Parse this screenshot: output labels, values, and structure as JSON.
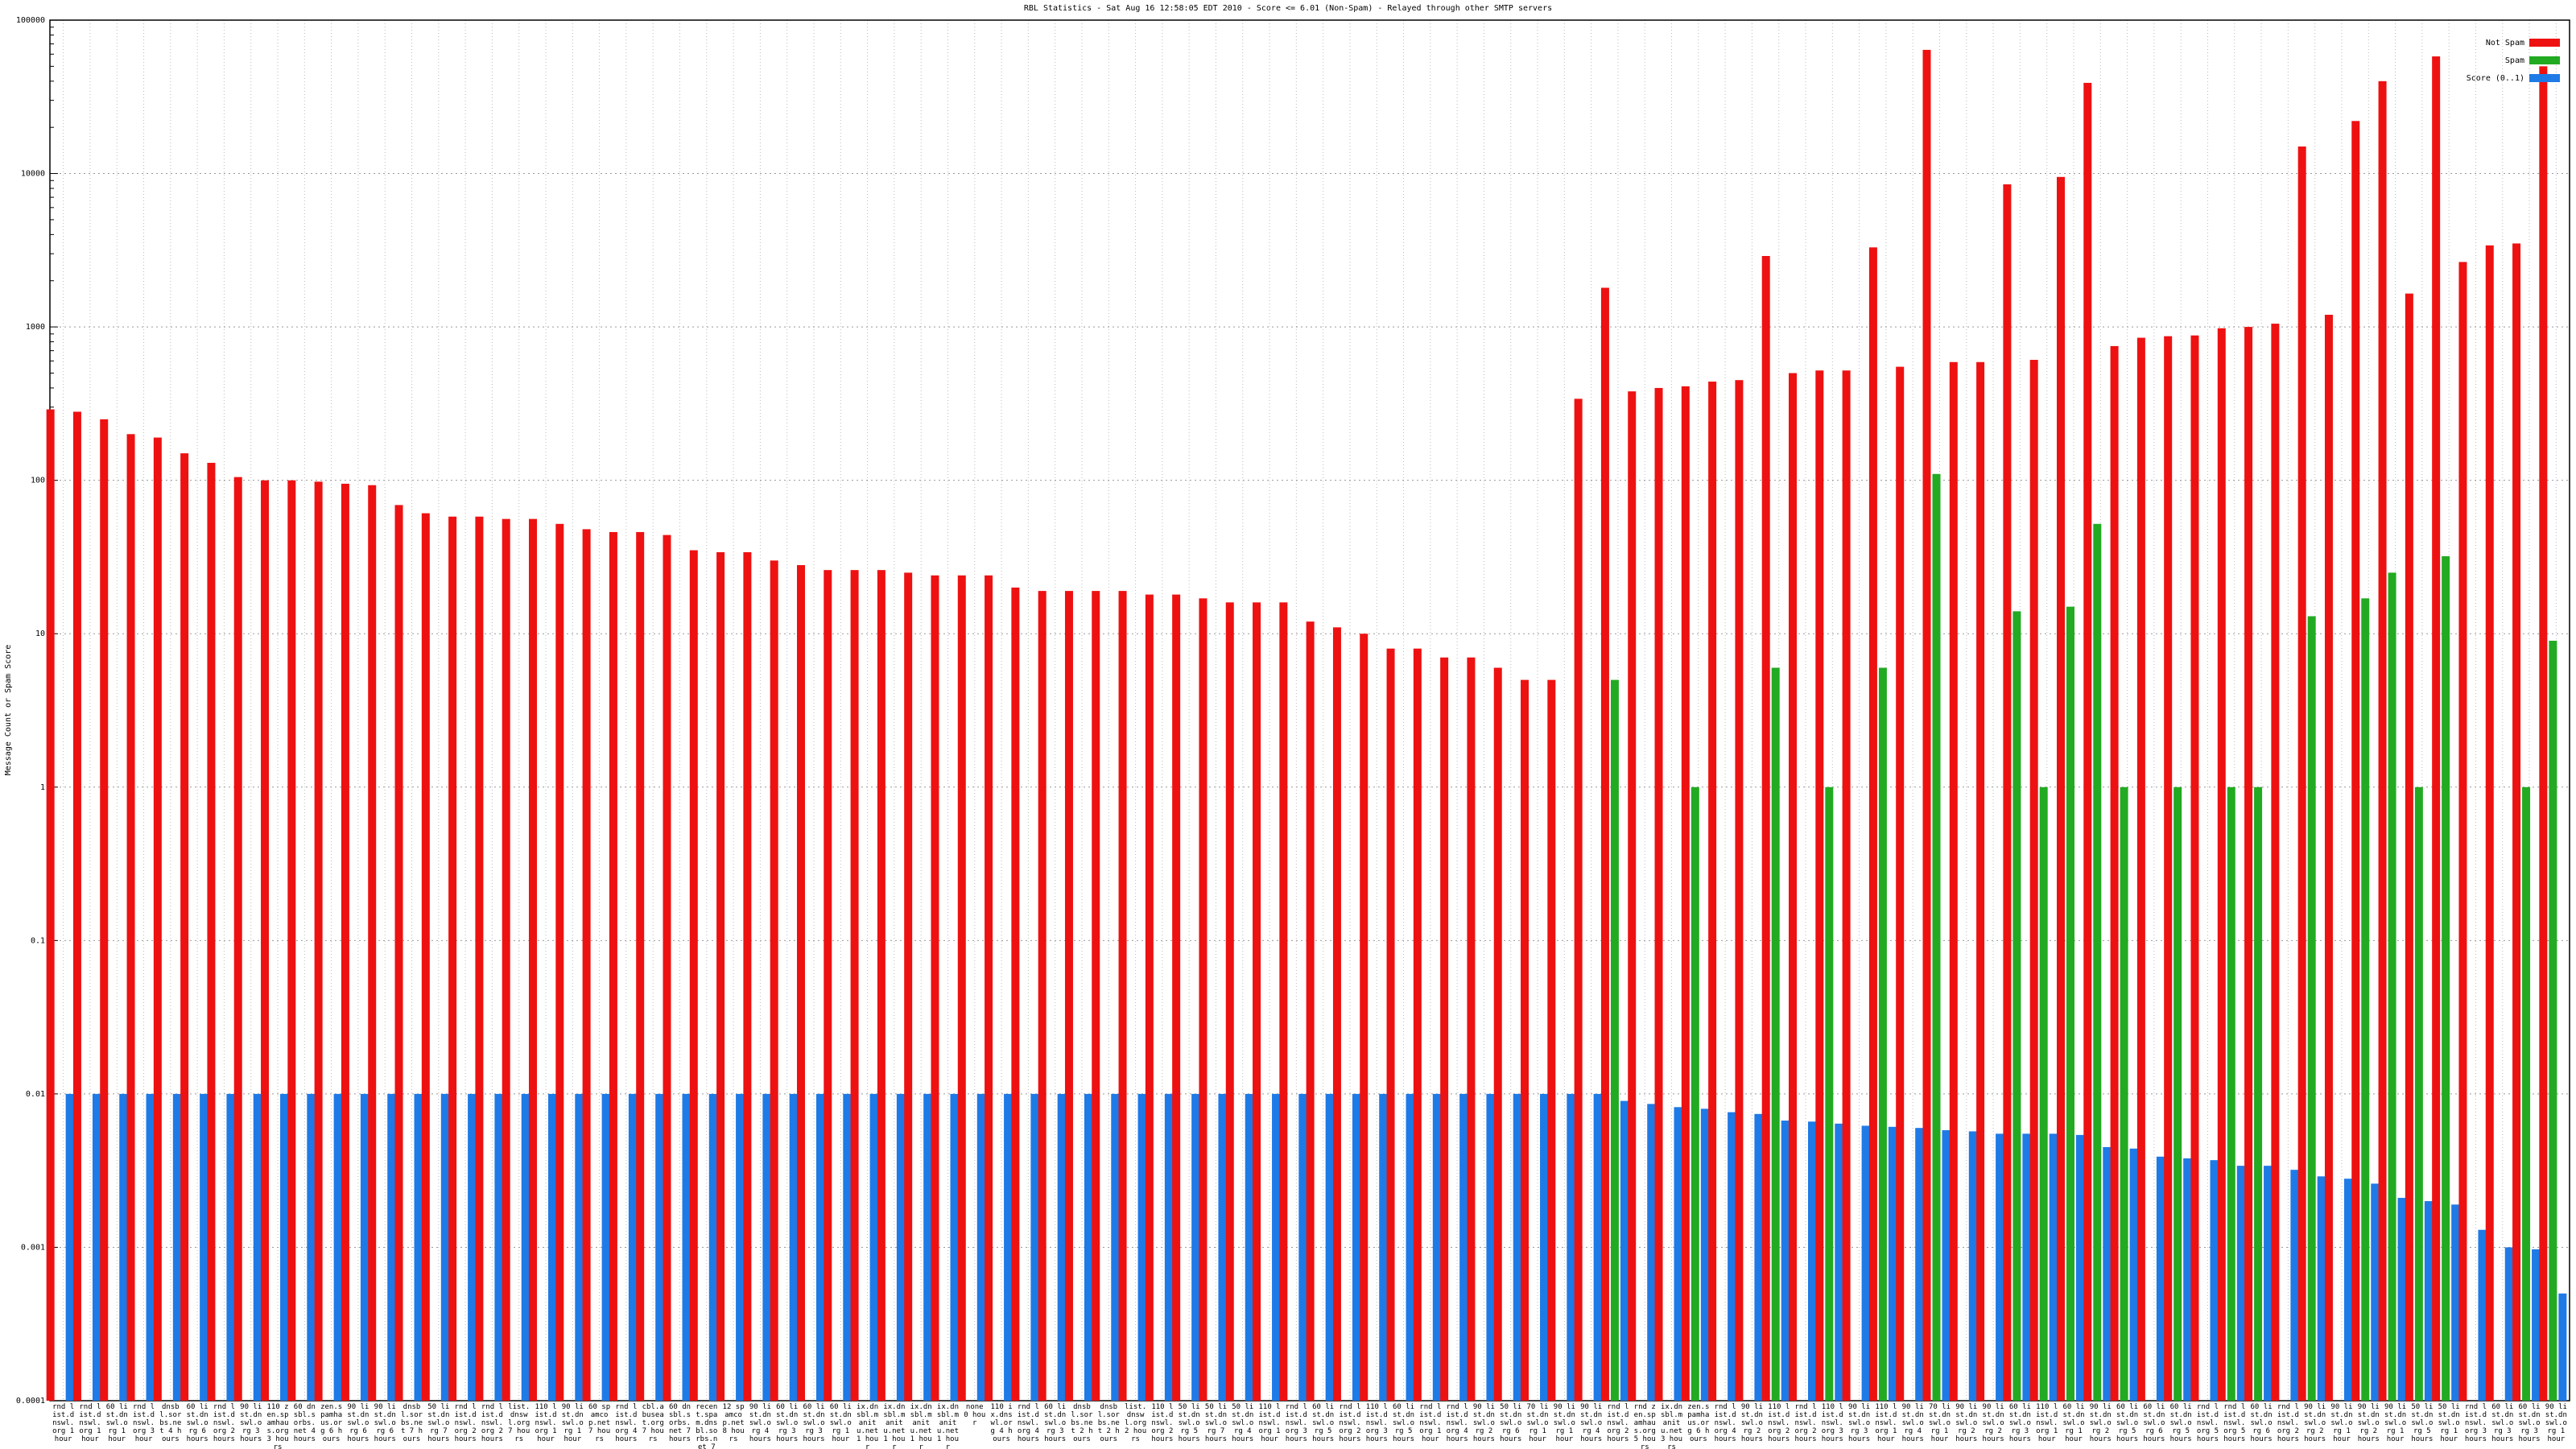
{
  "chart_data": {
    "type": "bar",
    "title": "RBL Statistics - Sat Aug 16 12:58:05 EDT 2010 - Score <= 6.01 (Non-Spam) - Relayed through other SMTP servers",
    "y_label": "Message Count or Spam Score",
    "log_scale": true,
    "grid": true,
    "legend": "top-right",
    "ylim": [
      0.0001,
      100000
    ],
    "yticks": [
      0.0001,
      0.001,
      0.01,
      0.1,
      1,
      10,
      100,
      1000,
      10000,
      100000
    ],
    "categories": [
      "rnd list.dnswl.org 1 hour",
      "rnd list.dnswl.org 1 hour",
      "60 list.dnswl.org 1 hour",
      "rnd list.dnswl.org 3 hour",
      "dnsbl.sorbs.net 4 hours",
      "60 list.dnswl.org 6 hours",
      "rnd list.dnswl.org 2 hours",
      "90 list.dnswl.org 3 hours",
      "110 zen.spamhaus.org 3 hours",
      "60 dnsbl.sorbs.net 4 hours",
      "zen.spamhaus.org 6 hours",
      "90 list.dnswl.org 6 hours",
      "90 list.dnswl.org 6 hours",
      "dnsbl.sorbs.net 7 hours",
      "50 list.dnswl.org 7 hours",
      "rnd list.dnswl.org 2 hours",
      "rnd list.dnswl.org 2 hours",
      "list.dnswl.org 7 hours",
      "110 list.dnswl.org 1 hour",
      "90 list.dnswl.org 1 hour",
      "60 spamcop.net 7 hours",
      "rnd list.dnswl.org 4 hours",
      "cbl.abuseat.org 7 hours",
      "60 dnsbl.sorbs.net 7 hours",
      "recent.spam.dnsbl.sorbs.net 7 hours",
      "12 spamcop.net 8 hours",
      "90 list.dnswl.org 4 hours",
      "60 list.dnswl.org 3 hours",
      "60 list.dnswl.org 3 hours",
      "60 list.dnswl.org 1 hour",
      "ix.dnsbl.manitu.net 1 hour",
      "ix.dnsbl.manitu.net 1 hour",
      "ix.dnsbl.manitu.net 1 hour",
      "ix.dnsbl.manitu.net 1 hour",
      "none 0 hour",
      "110 ix.dnswl.org 4 hours",
      "rnd list.dnswl.org 4 hours",
      "60 list.dnswl.org 3 hours",
      "dnsbl.sorbs.net 2 hours",
      "dnsbl.sorbs.net 2 hours",
      "list.dnswl.org 2 hours",
      "110 list.dnswl.org 2 hours",
      "50 list.dnswl.org 5 hours",
      "50 list.dnswl.org 7 hours",
      "50 list.dnswl.org 4 hours",
      "110 list.dnswl.org 1 hour",
      "rnd list.dnswl.org 3 hours",
      "60 list.dnswl.org 5 hours",
      "rnd list.dnswl.org 2 hours",
      "110 list.dnswl.org 3 hours",
      "60 list.dnswl.org 5 hours",
      "rnd list.dnswl.org 1 hour",
      "rnd list.dnswl.org 4 hours",
      "90 list.dnswl.org 2 hours",
      "50 list.dnswl.org 6 hours",
      "70 list.dnswl.org 1 hour",
      "90 list.dnswl.org 1 hour",
      "90 list.dnswl.org 4 hours",
      "rnd list.dnswl.org 2 hours",
      "rnd zen.spamhaus.org 5 hours",
      "ix.dnsbl.manitu.net 3 hours",
      "zen.spamhaus.org 6 hours",
      "rnd list.dnswl.org 4 hours",
      "90 list.dnswl.org 2 hours",
      "110 list.dnswl.org 2 hours",
      "rnd list.dnswl.org 2 hours",
      "110 list.dnswl.org 3 hours",
      "90 list.dnswl.org 3 hours",
      "110 list.dnswl.org 1 hour",
      "90 list.dnswl.org 4 hours",
      "70 list.dnswl.org 1 hour",
      "90 list.dnswl.org 2 hours",
      "90 list.dnswl.org 2 hours",
      "60 list.dnswl.org 3 hours",
      "110 list.dnswl.org 1 hour",
      "60 list.dnswl.org 1 hour",
      "90 list.dnswl.org 2 hours",
      "60 list.dnswl.org 5 hours",
      "60 list.dnswl.org 6 hours",
      "60 list.dnswl.org 5 hours",
      "rnd list.dnswl.org 5 hours",
      "rnd list.dnswl.org 5 hours",
      "60 list.dnswl.org 6 hours",
      "rnd list.dnswl.org 2 hours",
      "90 list.dnswl.org 2 hours",
      "90 list.dnswl.org 1 hour",
      "90 list.dnswl.org 2 hours",
      "90 list.dnswl.org 1 hour",
      "50 list.dnswl.org 5 hours",
      "50 list.dnswl.org 1 hour",
      "rnd list.dnswl.org 3 hours",
      "60 list.dnswl.org 3 hours",
      "60 list.dnswl.org 3 hours",
      "90 list.dnswl.org 1 hour"
    ],
    "series": [
      {
        "name": "Not Spam",
        "color": "#ee1111",
        "values": [
          290,
          280,
          250,
          200,
          190,
          150,
          130,
          105,
          100,
          100,
          98,
          95,
          93,
          69,
          61,
          58,
          58,
          56,
          56,
          52,
          48,
          46,
          46,
          44,
          35,
          34,
          34,
          30,
          28,
          26,
          26,
          26,
          25,
          24,
          24,
          24,
          20,
          19,
          19,
          19,
          19,
          18,
          18,
          17,
          16,
          16,
          16,
          12,
          11,
          10,
          8,
          8,
          7,
          7,
          6,
          5,
          5,
          340,
          1800,
          380,
          400,
          410,
          440,
          450,
          2900,
          500,
          520,
          520,
          3300,
          550,
          64000,
          590,
          590,
          8500,
          610,
          9500,
          39000,
          750,
          850,
          870,
          880,
          980,
          1000,
          1050,
          15000,
          1200,
          22000,
          40000,
          1650,
          58000,
          2650,
          3400,
          3500,
          50000
        ]
      },
      {
        "name": "Spam",
        "color": "#22aa22",
        "values": [
          null,
          null,
          null,
          null,
          null,
          null,
          null,
          null,
          null,
          null,
          null,
          null,
          null,
          null,
          null,
          null,
          null,
          null,
          null,
          null,
          null,
          null,
          null,
          null,
          null,
          null,
          null,
          null,
          null,
          null,
          null,
          null,
          null,
          null,
          null,
          null,
          null,
          null,
          null,
          null,
          null,
          null,
          null,
          null,
          null,
          null,
          null,
          null,
          null,
          null,
          null,
          null,
          null,
          null,
          null,
          null,
          null,
          null,
          5,
          null,
          null,
          1,
          null,
          null,
          6,
          null,
          1,
          null,
          6,
          null,
          110,
          null,
          null,
          14,
          1,
          15,
          52,
          1,
          null,
          1,
          null,
          1,
          1,
          null,
          13,
          null,
          17,
          25,
          1,
          32,
          null,
          null,
          1,
          9
        ]
      },
      {
        "name": "Score (0..1)",
        "color": "#1e7ae6",
        "values": [
          0.01,
          0.01,
          0.01,
          0.01,
          0.01,
          0.01,
          0.01,
          0.01,
          0.01,
          0.01,
          0.01,
          0.01,
          0.01,
          0.01,
          0.01,
          0.01,
          0.01,
          0.01,
          0.01,
          0.01,
          0.01,
          0.01,
          0.01,
          0.01,
          0.01,
          0.01,
          0.01,
          0.01,
          0.01,
          0.01,
          0.01,
          0.01,
          0.01,
          0.01,
          0.01,
          0.01,
          0.01,
          0.01,
          0.01,
          0.01,
          0.01,
          0.01,
          0.01,
          0.01,
          0.01,
          0.01,
          0.01,
          0.01,
          0.01,
          0.01,
          0.01,
          0.01,
          0.01,
          0.01,
          0.01,
          0.01,
          0.01,
          0.01,
          0.009,
          0.0086,
          0.0082,
          0.008,
          0.0076,
          0.0074,
          0.0067,
          0.0066,
          0.0064,
          0.0062,
          0.0061,
          0.006,
          0.0058,
          0.0057,
          0.0055,
          0.0055,
          0.0055,
          0.0054,
          0.0045,
          0.0044,
          0.0039,
          0.0038,
          0.0037,
          0.0034,
          0.0034,
          0.0032,
          0.0029,
          0.0028,
          0.0026,
          0.0021,
          0.002,
          0.0019,
          0.0013,
          0.001,
          0.00097,
          0.0005
        ]
      }
    ]
  }
}
